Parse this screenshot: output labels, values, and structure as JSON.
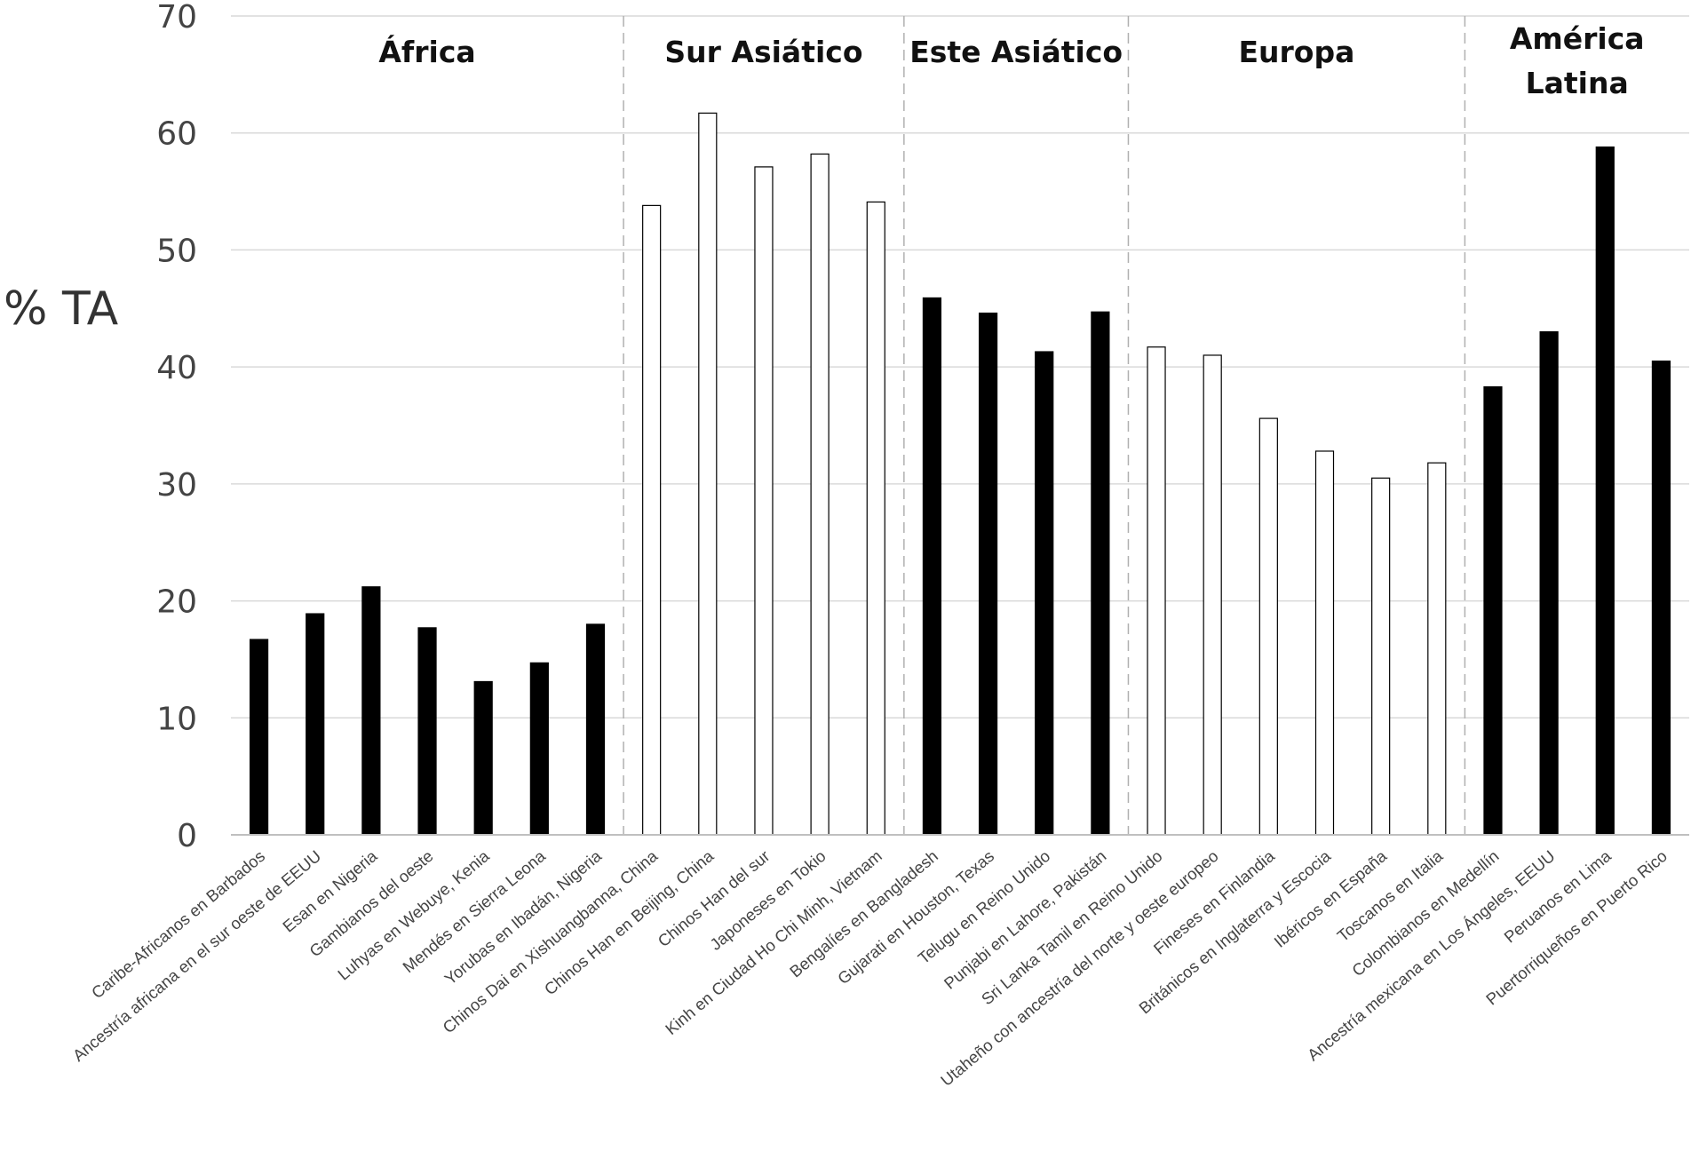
{
  "chart_data": {
    "type": "bar",
    "ylabel": "% TA",
    "ylim": [
      0,
      70
    ],
    "yticks": [
      0,
      10,
      20,
      30,
      40,
      50,
      60,
      70
    ],
    "grid": true,
    "categories": [
      "Caribe-Africanos en Barbados",
      "Ancestría africana en el sur oeste de EEUU",
      "Esan en Nigeria",
      "Gambianos del oeste",
      "Luhyas en Webuye, Kenia",
      "Mendés en Sierra Leona",
      "Yorubas en Ibadán, Nigeria",
      "Chinos Dai en Xishuangbanna, China",
      "Chinos Han en Beijing, China",
      "Chinos Han del sur",
      "Japoneses en Tokio",
      "Kinh en Ciudad Ho Chi Minh, Vietnam",
      "Bengalíes en Bangladesh",
      "Gujarati en Houston, Texas",
      "Telugu en Reino Unido",
      "Punjabi en Lahore, Pakistán",
      "Sri Lanka Tamil en Reino Unido",
      "Utaheño con ancestría del norte y oeste europeo",
      "Fineses en Finlandia",
      "Británicos en Inglaterra y Escocia",
      "Ibéricos en España",
      "Toscanos en Italia",
      "Colombianos en Medellín",
      "Ancestría mexicana en Los Ángeles, EEUU",
      "Peruanos en Lima",
      "Puertorriqueños en Puerto Rico"
    ],
    "values": [
      16.7,
      18.9,
      21.2,
      17.7,
      13.1,
      14.7,
      18.0,
      53.8,
      61.7,
      57.1,
      58.2,
      54.1,
      45.9,
      44.6,
      41.3,
      44.7,
      41.7,
      41.0,
      35.6,
      32.8,
      30.5,
      31.8,
      38.3,
      43.0,
      58.8,
      40.5
    ],
    "fills": [
      "#000000",
      "#000000",
      "#000000",
      "#000000",
      "#000000",
      "#000000",
      "#000000",
      "#ffffff",
      "#ffffff",
      "#ffffff",
      "#ffffff",
      "#ffffff",
      "#000000",
      "#000000",
      "#000000",
      "#000000",
      "#ffffff",
      "#ffffff",
      "#ffffff",
      "#ffffff",
      "#ffffff",
      "#ffffff",
      "#000000",
      "#000000",
      "#000000",
      "#000000"
    ],
    "regions": [
      {
        "label_lines": [
          "África"
        ],
        "start": 0,
        "end": 6
      },
      {
        "label_lines": [
          "Sur Asiático"
        ],
        "start": 7,
        "end": 11
      },
      {
        "label_lines": [
          "Este Asiático"
        ],
        "start": 12,
        "end": 15
      },
      {
        "label_lines": [
          "Europa"
        ],
        "start": 16,
        "end": 21
      },
      {
        "label_lines": [
          "América",
          "Latina"
        ],
        "start": 22,
        "end": 25
      }
    ],
    "colors": {
      "gridline": "#d9d9d9",
      "axis": "#bfbfbf",
      "divider": "#b0b0b0"
    }
  }
}
